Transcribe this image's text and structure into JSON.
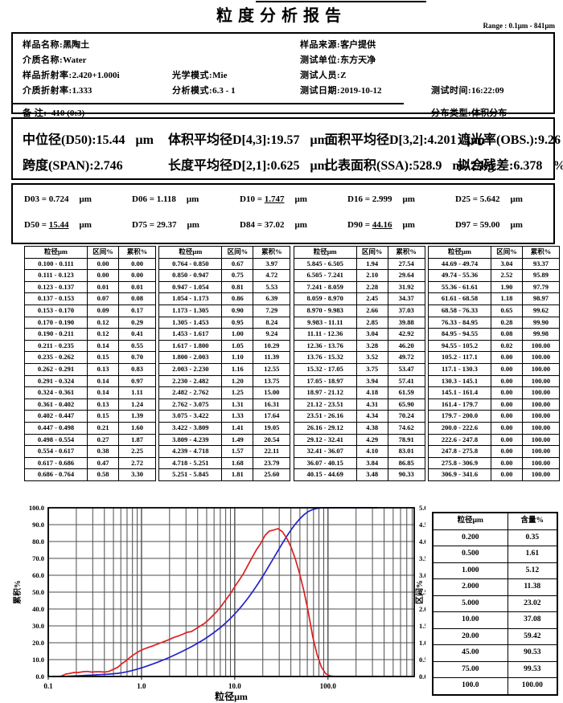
{
  "page": {
    "title": "粒度分析报告",
    "range_label": "Range : 0.1μm - 841μm"
  },
  "info": {
    "sample_name": {
      "label": "样品名称:",
      "value": "黑陶土"
    },
    "medium_name": {
      "label": "介质名称:",
      "value": "Water"
    },
    "sample_ri": {
      "label": "样品折射率:",
      "value": "2.420+1.000i"
    },
    "optical_mode": {
      "label": "光学模式:",
      "value": "Mie"
    },
    "medium_ri": {
      "label": "介质折射率:",
      "value": "1.333"
    },
    "analysis_mode": {
      "label": "分析模式:",
      "value": "6.3 - 1"
    },
    "remark": {
      "label": "备  注:",
      "value": "410  (0:3)"
    },
    "sample_source": {
      "label": "样品来源:",
      "value": "客户提供"
    },
    "test_unit": {
      "label": "测试单位:",
      "value": "东方天净"
    },
    "tester": {
      "label": "测试人员:",
      "value": "Z"
    },
    "test_date": {
      "label": "测试日期:",
      "value": "2019-10-12"
    },
    "test_time": {
      "label": "测试时间:",
      "value": "16:22:09"
    },
    "dist_type": {
      "label": "分布类型:",
      "value": "体积分布"
    }
  },
  "summary": {
    "rows": [
      [
        {
          "label": "中位径(D50):",
          "value": "15.44",
          "unit": "μm"
        },
        {
          "label": "体积平均径D[4,3]:",
          "value": "19.57",
          "unit": "μm"
        },
        {
          "label": "面积平均径D[3,2]:",
          "value": "4.201",
          "unit": "μm"
        },
        {
          "label": "遮光率(OBS.):",
          "value": "9.26",
          "unit": "%"
        }
      ],
      [
        {
          "label": "跨度(SPAN):",
          "value": "2.746",
          "unit": ""
        },
        {
          "label": "长度平均径D[2,1]:",
          "value": "0.625",
          "unit": "μm"
        },
        {
          "label": "比表面积(SSA):",
          "value": "528.9",
          "unit": "m^2/kg"
        },
        {
          "label": "拟合残差:",
          "value": "6.378",
          "unit": "%"
        }
      ]
    ]
  },
  "dvalues": {
    "rows": [
      [
        {
          "name": "D03",
          "value": "0.724",
          "unit": "μm",
          "u": false
        },
        {
          "name": "D06",
          "value": "1.118",
          "unit": "μm",
          "u": false
        },
        {
          "name": "D10",
          "value": "1.747",
          "unit": "μm",
          "u": true
        },
        {
          "name": "D16",
          "value": "2.999",
          "unit": "μm",
          "u": false
        },
        {
          "name": "D25",
          "value": "5.642",
          "unit": "μm",
          "u": false
        }
      ],
      [
        {
          "name": "D50",
          "value": "15.44",
          "unit": "μm",
          "u": true
        },
        {
          "name": "D75",
          "value": "29.37",
          "unit": "μm",
          "u": false
        },
        {
          "name": "D84",
          "value": "37.02",
          "unit": "μm",
          "u": false
        },
        {
          "name": "D90",
          "value": "44.16",
          "unit": "μm",
          "u": true
        },
        {
          "name": "D97",
          "value": "59.00",
          "unit": "μm",
          "u": false
        }
      ]
    ]
  },
  "distribution_table": {
    "headers": [
      "粒径μm",
      "区间%",
      "累积%"
    ],
    "groups": [
      [
        [
          "0.100 - 0.111",
          "0.00",
          "0.00"
        ],
        [
          "0.111 - 0.123",
          "0.00",
          "0.00"
        ],
        [
          "0.123 - 0.137",
          "0.01",
          "0.01"
        ],
        [
          "0.137 - 0.153",
          "0.07",
          "0.08"
        ],
        [
          "0.153 - 0.170",
          "0.09",
          "0.17"
        ],
        [
          "0.170 - 0.190",
          "0.12",
          "0.29"
        ],
        [
          "0.190 - 0.211",
          "0.12",
          "0.41"
        ],
        [
          "0.211 - 0.235",
          "0.14",
          "0.55"
        ],
        [
          "0.235 - 0.262",
          "0.15",
          "0.70"
        ],
        [
          "0.262 - 0.291",
          "0.13",
          "0.83"
        ],
        [
          "0.291 - 0.324",
          "0.14",
          "0.97"
        ],
        [
          "0.324 - 0.361",
          "0.14",
          "1.11"
        ],
        [
          "0.361 - 0.402",
          "0.13",
          "1.24"
        ],
        [
          "0.402 - 0.447",
          "0.15",
          "1.39"
        ],
        [
          "0.447 - 0.498",
          "0.21",
          "1.60"
        ],
        [
          "0.498 - 0.554",
          "0.27",
          "1.87"
        ],
        [
          "0.554 - 0.617",
          "0.38",
          "2.25"
        ],
        [
          "0.617 - 0.686",
          "0.47",
          "2.72"
        ],
        [
          "0.686 - 0.764",
          "0.58",
          "3.30"
        ]
      ],
      [
        [
          "0.764 - 0.850",
          "0.67",
          "3.97"
        ],
        [
          "0.850 - 0.947",
          "0.75",
          "4.72"
        ],
        [
          "0.947 - 1.054",
          "0.81",
          "5.53"
        ],
        [
          "1.054 - 1.173",
          "0.86",
          "6.39"
        ],
        [
          "1.173 - 1.305",
          "0.90",
          "7.29"
        ],
        [
          "1.305 - 1.453",
          "0.95",
          "8.24"
        ],
        [
          "1.453 - 1.617",
          "1.00",
          "9.24"
        ],
        [
          "1.617 - 1.800",
          "1.05",
          "10.29"
        ],
        [
          "1.800 - 2.003",
          "1.10",
          "11.39"
        ],
        [
          "2.003 - 2.230",
          "1.16",
          "12.55"
        ],
        [
          "2.230 - 2.482",
          "1.20",
          "13.75"
        ],
        [
          "2.482 - 2.762",
          "1.25",
          "15.00"
        ],
        [
          "2.762 - 3.075",
          "1.31",
          "16.31"
        ],
        [
          "3.075 - 3.422",
          "1.33",
          "17.64"
        ],
        [
          "3.422 - 3.809",
          "1.41",
          "19.05"
        ],
        [
          "3.809 - 4.239",
          "1.49",
          "20.54"
        ],
        [
          "4.239 - 4.718",
          "1.57",
          "22.11"
        ],
        [
          "4.718 - 5.251",
          "1.68",
          "23.79"
        ],
        [
          "5.251 - 5.845",
          "1.81",
          "25.60"
        ]
      ],
      [
        [
          "5.845 - 6.505",
          "1.94",
          "27.54"
        ],
        [
          "6.505 - 7.241",
          "2.10",
          "29.64"
        ],
        [
          "7.241 - 8.059",
          "2.28",
          "31.92"
        ],
        [
          "8.059 - 8.970",
          "2.45",
          "34.37"
        ],
        [
          "8.970 - 9.983",
          "2.66",
          "37.03"
        ],
        [
          "9.983 - 11.11",
          "2.85",
          "39.88"
        ],
        [
          "11.11 - 12.36",
          "3.04",
          "42.92"
        ],
        [
          "12.36 - 13.76",
          "3.28",
          "46.20"
        ],
        [
          "13.76 - 15.32",
          "3.52",
          "49.72"
        ],
        [
          "15.32 - 17.05",
          "3.75",
          "53.47"
        ],
        [
          "17.05 - 18.97",
          "3.94",
          "57.41"
        ],
        [
          "18.97 - 21.12",
          "4.18",
          "61.59"
        ],
        [
          "21.12 - 23.51",
          "4.31",
          "65.90"
        ],
        [
          "23.51 - 26.16",
          "4.34",
          "70.24"
        ],
        [
          "26.16 - 29.12",
          "4.38",
          "74.62"
        ],
        [
          "29.12 - 32.41",
          "4.29",
          "78.91"
        ],
        [
          "32.41 - 36.07",
          "4.10",
          "83.01"
        ],
        [
          "36.07 - 40.15",
          "3.84",
          "86.85"
        ],
        [
          "40.15 - 44.69",
          "3.48",
          "90.33"
        ]
      ],
      [
        [
          "44.69 - 49.74",
          "3.04",
          "93.37"
        ],
        [
          "49.74 - 55.36",
          "2.52",
          "95.89"
        ],
        [
          "55.36 - 61.61",
          "1.90",
          "97.79"
        ],
        [
          "61.61 - 68.58",
          "1.18",
          "98.97"
        ],
        [
          "68.58 - 76.33",
          "0.65",
          "99.62"
        ],
        [
          "76.33 - 84.95",
          "0.28",
          "99.90"
        ],
        [
          "84.95 - 94.55",
          "0.08",
          "99.98"
        ],
        [
          "94.55 - 105.2",
          "0.02",
          "100.00"
        ],
        [
          "105.2 - 117.1",
          "0.00",
          "100.00"
        ],
        [
          "117.1 - 130.3",
          "0.00",
          "100.00"
        ],
        [
          "130.3 - 145.1",
          "0.00",
          "100.00"
        ],
        [
          "145.1 - 161.4",
          "0.00",
          "100.00"
        ],
        [
          "161.4 - 179.7",
          "0.00",
          "100.00"
        ],
        [
          "179.7 - 200.0",
          "0.00",
          "100.00"
        ],
        [
          "200.0 - 222.6",
          "0.00",
          "100.00"
        ],
        [
          "222.6 - 247.8",
          "0.00",
          "100.00"
        ],
        [
          "247.8 - 275.8",
          "0.00",
          "100.00"
        ],
        [
          "275.8 - 306.9",
          "0.00",
          "100.00"
        ],
        [
          "306.9 - 341.6",
          "0.00",
          "100.00"
        ]
      ]
    ]
  },
  "content_table": {
    "headers": [
      "粒径μm",
      "含量%"
    ],
    "rows": [
      [
        "0.200",
        "0.35"
      ],
      [
        "0.500",
        "1.61"
      ],
      [
        "1.000",
        "5.12"
      ],
      [
        "2.000",
        "11.38"
      ],
      [
        "5.000",
        "23.02"
      ],
      [
        "10.00",
        "37.08"
      ],
      [
        "20.00",
        "59.42"
      ],
      [
        "45.00",
        "90.53"
      ],
      [
        "75.00",
        "99.53"
      ],
      [
        "100.0",
        "100.00"
      ]
    ]
  },
  "chart_data": {
    "type": "line",
    "xlabel": "粒径μm",
    "ylabel_left": "累积%",
    "ylabel_right": "区间%",
    "x_scale": "log",
    "xlim": [
      0.1,
      841
    ],
    "x_log_ticks": [
      "0.1",
      "1.0",
      "10.0",
      "100.0"
    ],
    "ylim_left": [
      0,
      100
    ],
    "ytick_step_left": 10,
    "ylim_right": [
      0,
      5.0
    ],
    "ytick_step_right": 0.5,
    "grid": true,
    "x": [
      0.111,
      0.123,
      0.137,
      0.153,
      0.17,
      0.19,
      0.211,
      0.235,
      0.262,
      0.291,
      0.324,
      0.361,
      0.402,
      0.447,
      0.498,
      0.554,
      0.617,
      0.686,
      0.764,
      0.85,
      0.947,
      1.054,
      1.173,
      1.305,
      1.453,
      1.617,
      1.8,
      2.003,
      2.23,
      2.482,
      2.762,
      3.075,
      3.422,
      3.809,
      4.239,
      4.718,
      5.251,
      5.845,
      6.505,
      7.241,
      8.059,
      8.97,
      9.983,
      11.11,
      12.36,
      13.76,
      15.32,
      17.05,
      18.97,
      21.12,
      23.51,
      26.16,
      29.12,
      32.41,
      36.07,
      40.15,
      44.69,
      49.74,
      55.36,
      61.61,
      68.58,
      76.33,
      84.95,
      94.55,
      105.2,
      117.1,
      130.3,
      145.1,
      161.4,
      179.7,
      200.0,
      222.6,
      247.8,
      275.8,
      306.9,
      341.6
    ],
    "series": [
      {
        "name": "累积%",
        "axis": "left",
        "color": "#2222cc",
        "y": [
          0.0,
          0.0,
          0.01,
          0.08,
          0.17,
          0.29,
          0.41,
          0.55,
          0.7,
          0.83,
          0.97,
          1.11,
          1.24,
          1.39,
          1.6,
          1.87,
          2.25,
          2.72,
          3.3,
          3.97,
          4.72,
          5.53,
          6.39,
          7.29,
          8.24,
          9.24,
          10.29,
          11.39,
          12.55,
          13.75,
          15.0,
          16.31,
          17.64,
          19.05,
          20.54,
          22.11,
          23.79,
          25.6,
          27.54,
          29.64,
          31.92,
          34.37,
          37.03,
          39.88,
          42.92,
          46.2,
          49.72,
          53.47,
          57.41,
          61.59,
          65.9,
          70.24,
          74.62,
          78.91,
          83.01,
          86.85,
          90.33,
          93.37,
          95.89,
          97.79,
          98.97,
          99.62,
          99.9,
          99.98,
          100.0,
          100.0,
          100.0,
          100.0,
          100.0,
          100.0,
          100.0,
          100.0,
          100.0,
          100.0,
          100.0,
          100.0
        ]
      },
      {
        "name": "区间%",
        "axis": "right",
        "color": "#dd2020",
        "y": [
          0.0,
          0.0,
          0.01,
          0.07,
          0.09,
          0.12,
          0.12,
          0.14,
          0.15,
          0.13,
          0.14,
          0.14,
          0.13,
          0.15,
          0.21,
          0.27,
          0.38,
          0.47,
          0.58,
          0.67,
          0.75,
          0.81,
          0.86,
          0.9,
          0.95,
          1.0,
          1.05,
          1.1,
          1.16,
          1.2,
          1.25,
          1.31,
          1.33,
          1.41,
          1.49,
          1.57,
          1.68,
          1.81,
          1.94,
          2.1,
          2.28,
          2.45,
          2.66,
          2.85,
          3.04,
          3.28,
          3.52,
          3.75,
          3.94,
          4.18,
          4.31,
          4.34,
          4.38,
          4.29,
          4.1,
          3.84,
          3.48,
          3.04,
          2.52,
          1.9,
          1.18,
          0.65,
          0.28,
          0.08,
          0.02,
          0.0,
          0.0,
          0.0,
          0.0,
          0.0,
          0.0,
          0.0,
          0.0,
          0.0,
          0.0,
          0.0
        ]
      }
    ]
  }
}
